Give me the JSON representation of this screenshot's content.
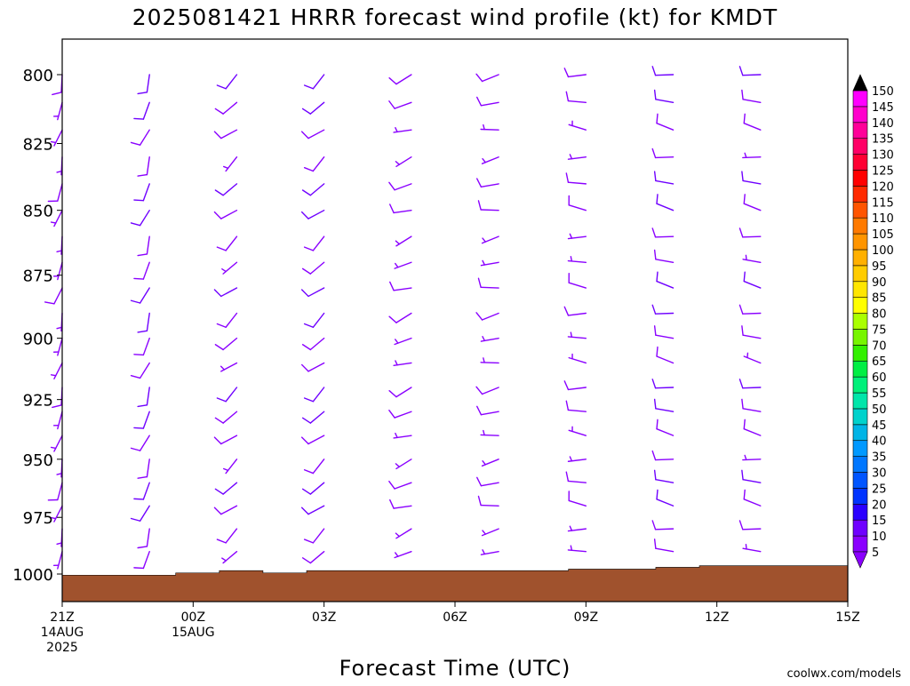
{
  "chart_data": {
    "type": "wind-barb-profile",
    "title": "2025081421 HRRR forecast wind profile (kt) for KMDT",
    "xlabel": "Forecast Time (UTC)",
    "watermark": "coolwx.com/models",
    "x_ticks": [
      {
        "hour": 0,
        "lines": [
          "21Z",
          "14AUG",
          "2025"
        ]
      },
      {
        "hour": 3,
        "lines": [
          "00Z",
          "15AUG"
        ]
      },
      {
        "hour": 6,
        "lines": [
          "03Z"
        ]
      },
      {
        "hour": 9,
        "lines": [
          "06Z"
        ]
      },
      {
        "hour": 12,
        "lines": [
          "09Z"
        ]
      },
      {
        "hour": 15,
        "lines": [
          "12Z"
        ]
      },
      {
        "hour": 18,
        "lines": [
          "15Z"
        ]
      }
    ],
    "xlim": [
      0,
      18
    ],
    "ylabel": "",
    "y_ticks": [
      800,
      825,
      850,
      875,
      900,
      925,
      950,
      975,
      1000
    ],
    "ylim_hPa": [
      1012,
      777
    ],
    "colorbar": {
      "labels": [
        5,
        10,
        15,
        20,
        25,
        30,
        35,
        40,
        45,
        50,
        55,
        60,
        65,
        70,
        75,
        80,
        85,
        90,
        95,
        100,
        105,
        110,
        115,
        120,
        125,
        130,
        135,
        140,
        145,
        150
      ],
      "colors": [
        "#8a00ff",
        "#6f00ff",
        "#2b00ff",
        "#0033ff",
        "#0055ff",
        "#0077ff",
        "#0099ff",
        "#00b4e6",
        "#00d2cc",
        "#00e6aa",
        "#00f07a",
        "#00ee44",
        "#33f000",
        "#77f500",
        "#aaff00",
        "#ffff00",
        "#ffe600",
        "#ffcc00",
        "#ffb000",
        "#ff9500",
        "#ff7a00",
        "#ff5500",
        "#ff2a00",
        "#ff0000",
        "#ff0033",
        "#ff0066",
        "#ff0099",
        "#ff00cc",
        "#ff00ff",
        "#000000"
      ]
    },
    "terrain": {
      "color": "#a0522d",
      "surface_pressure_hPa": [
        {
          "hour": 0,
          "p": 1000.5
        },
        {
          "hour": 2.6,
          "p": 1000.5
        },
        {
          "hour": 2.6,
          "p": 999.5
        },
        {
          "hour": 3.6,
          "p": 999.5
        },
        {
          "hour": 3.6,
          "p": 998.5
        },
        {
          "hour": 4.6,
          "p": 998.5
        },
        {
          "hour": 4.6,
          "p": 999.5
        },
        {
          "hour": 5.6,
          "p": 999.5
        },
        {
          "hour": 5.6,
          "p": 998.5
        },
        {
          "hour": 11.6,
          "p": 998.5
        },
        {
          "hour": 11.6,
          "p": 997.8
        },
        {
          "hour": 13.6,
          "p": 997.8
        },
        {
          "hour": 13.6,
          "p": 997
        },
        {
          "hour": 14.6,
          "p": 997
        },
        {
          "hour": 14.6,
          "p": 996.3
        },
        {
          "hour": 18,
          "p": 996.3
        }
      ]
    },
    "barb_columns": [
      {
        "hour": 0,
        "dir": 195,
        "speed": 8,
        "min_speed": 6
      },
      {
        "hour": 2,
        "dir": 200,
        "speed": 11,
        "min_speed": 6
      },
      {
        "hour": 4,
        "dir": 230,
        "speed": 10,
        "min_speed": 6
      },
      {
        "hour": 6,
        "dir": 230,
        "speed": 11,
        "min_speed": 6
      },
      {
        "hour": 8,
        "dir": 250,
        "speed": 9,
        "min_speed": 6
      },
      {
        "hour": 10,
        "dir": 260,
        "speed": 9,
        "min_speed": 6
      },
      {
        "hour": 12,
        "dir": 275,
        "speed": 9,
        "min_speed": 6
      },
      {
        "hour": 14,
        "dir": 280,
        "speed": 11,
        "min_speed": 6
      },
      {
        "hour": 16,
        "dir": 280,
        "speed": 10,
        "min_speed": 6
      }
    ],
    "barb_levels_hPa": [
      800,
      810,
      820,
      830,
      840,
      850,
      860,
      870,
      880,
      890,
      900,
      910,
      920,
      930,
      940,
      950,
      960,
      970,
      980,
      990
    ]
  }
}
